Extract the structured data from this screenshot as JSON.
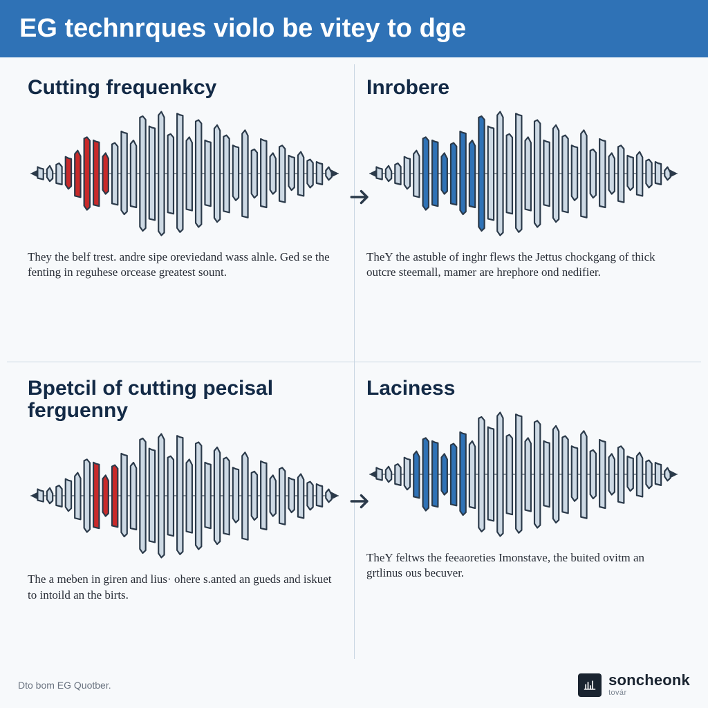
{
  "colors": {
    "banner_bg": "#2f72b6",
    "title_color": "#132a46",
    "wave_fill": "#cdd9e4",
    "wave_stroke": "#2b3a4a",
    "highlight_red": "#c92a2a",
    "highlight_blue": "#2f72b6",
    "arrow_color": "#2b3a4a",
    "divider": "#c9d6e2",
    "page_bg": "#f7f9fb",
    "caption_color": "#2a2f38",
    "footer_text": "#6a7380",
    "brand_logo_bg": "#1a2430"
  },
  "typography": {
    "banner_fontsize": 38,
    "panel_title_fontsize": 30,
    "caption_fontsize": 17,
    "footer_fontsize": 14,
    "brand_fontsize": 22
  },
  "banner": {
    "title": "EG technrques violo be vitey to dge"
  },
  "panels": [
    {
      "key": "tl",
      "title": "Cutting frequenkcy",
      "caption": "They the belf trest. andre sipe oreviedand wass alnle. Ged se the fenting in reguhese orcease greatest sount.",
      "wave": {
        "heights": [
          0.06,
          0.1,
          0.14,
          0.22,
          0.34,
          0.55,
          0.48,
          0.3,
          0.46,
          0.62,
          0.5,
          0.88,
          0.7,
          0.95,
          0.6,
          0.9,
          0.55,
          0.82,
          0.48,
          0.74,
          0.58,
          0.4,
          0.66,
          0.36,
          0.5,
          0.3,
          0.42,
          0.24,
          0.32,
          0.2,
          0.14,
          0.08
        ],
        "highlight_range": [
          3,
          7
        ],
        "highlight_color_key": "highlight_red"
      }
    },
    {
      "key": "tr",
      "title": "Inrobere",
      "caption": "TheY the astuble of inghr flews the Jettus chockgang of thick outcre steemall, mamer are hrephore ond nedifier.",
      "wave": {
        "heights": [
          0.06,
          0.1,
          0.14,
          0.22,
          0.34,
          0.55,
          0.48,
          0.3,
          0.46,
          0.62,
          0.5,
          0.88,
          0.7,
          0.95,
          0.6,
          0.9,
          0.55,
          0.82,
          0.48,
          0.74,
          0.58,
          0.4,
          0.66,
          0.36,
          0.5,
          0.3,
          0.42,
          0.24,
          0.32,
          0.2,
          0.14,
          0.08
        ],
        "highlight_range": [
          5,
          11
        ],
        "highlight_color_key": "highlight_blue"
      }
    },
    {
      "key": "bl",
      "title": "Bpetcil of cutting pecisal ferguenny",
      "caption": "The a meben in giren and lius· ohere s.anted an gueds and iskuet to intoild an the birts.",
      "wave": {
        "heights": [
          0.06,
          0.1,
          0.14,
          0.22,
          0.34,
          0.55,
          0.48,
          0.3,
          0.46,
          0.62,
          0.5,
          0.88,
          0.7,
          0.95,
          0.6,
          0.9,
          0.55,
          0.82,
          0.48,
          0.74,
          0.58,
          0.4,
          0.66,
          0.36,
          0.5,
          0.3,
          0.42,
          0.24,
          0.32,
          0.2,
          0.14,
          0.08
        ],
        "highlight_range": [
          6,
          8
        ],
        "highlight_color_key": "highlight_red"
      }
    },
    {
      "key": "br",
      "title": "Laciness",
      "caption": "TheY feltws the feeaoreties Imonstave, the buited ovitm an grtlinus ous becuver.",
      "wave": {
        "heights": [
          0.06,
          0.1,
          0.14,
          0.22,
          0.34,
          0.55,
          0.48,
          0.3,
          0.46,
          0.62,
          0.5,
          0.88,
          0.7,
          0.95,
          0.6,
          0.9,
          0.55,
          0.82,
          0.48,
          0.74,
          0.58,
          0.4,
          0.66,
          0.36,
          0.5,
          0.3,
          0.42,
          0.24,
          0.32,
          0.2,
          0.14,
          0.08
        ],
        "highlight_range": [
          4,
          9
        ],
        "highlight_color_key": "highlight_blue"
      }
    }
  ],
  "arrow_glyph": "→",
  "footer": {
    "left": "Dto bom EG Quotber.",
    "brand_name": "soncheonk",
    "brand_sub": "továr"
  },
  "layout": {
    "aspect": "1024x1024",
    "grid": "2x2",
    "wave_bar_count": 32,
    "wave_stroke_width": 2.2
  }
}
